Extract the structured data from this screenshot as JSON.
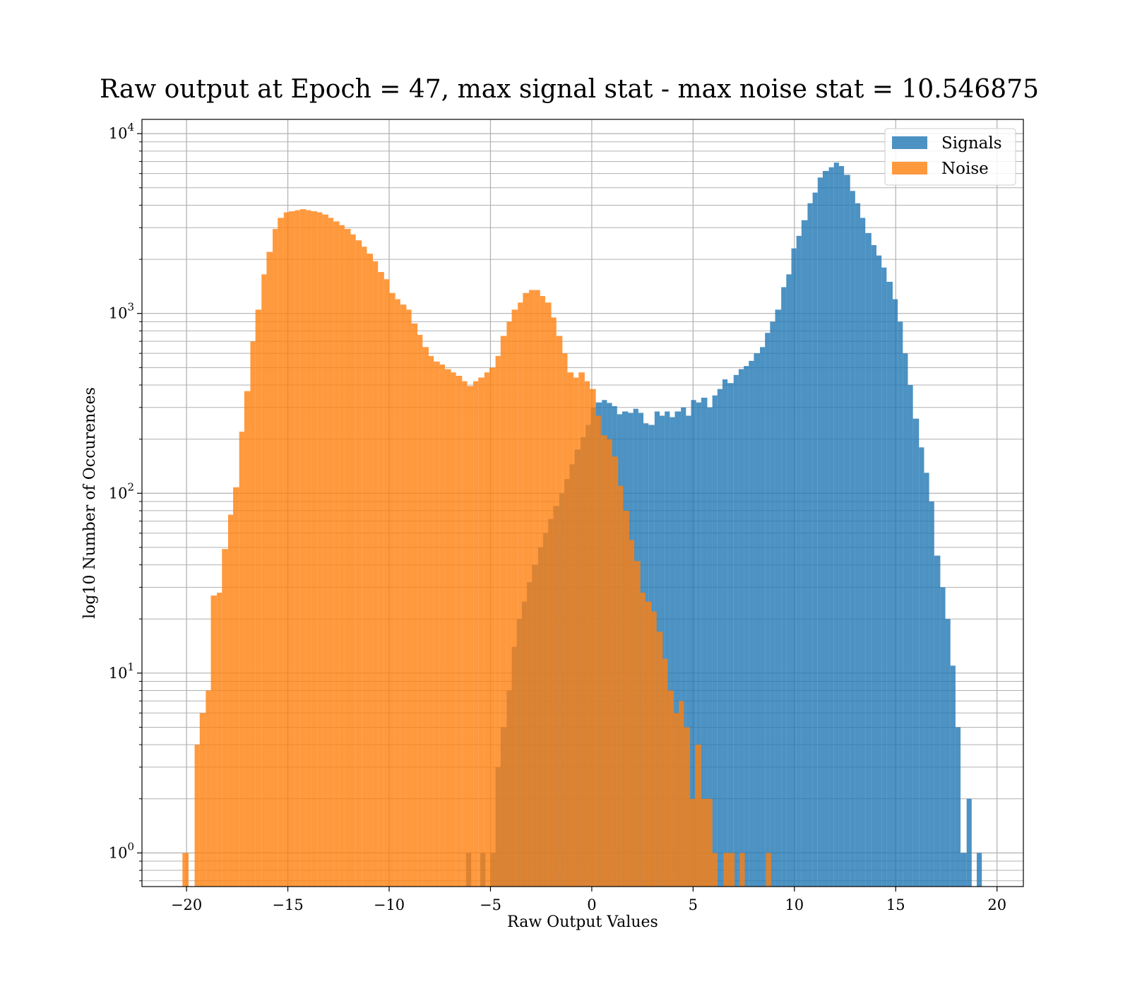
{
  "chart_data": {
    "type": "bar",
    "title": "Raw output at Epoch = 47, max signal stat - max noise stat = 10.546875",
    "xlabel": "Raw Output Values",
    "ylabel": "log10 Number of Occurences",
    "xlim": [
      -22.2,
      21.3
    ],
    "ylim": [
      0.65,
      12000
    ],
    "yscale": "log",
    "xticks": [
      -20,
      -15,
      -10,
      -5,
      0,
      5,
      10,
      15,
      20
    ],
    "xtick_labels": [
      "−20",
      "−15",
      "−10",
      "−5",
      "0",
      "5",
      "10",
      "15",
      "20"
    ],
    "yticks": [
      1,
      10,
      100,
      1000,
      10000
    ],
    "ytick_labels": [
      {
        "base": "10",
        "exp": "0"
      },
      {
        "base": "10",
        "exp": "1"
      },
      {
        "base": "10",
        "exp": "2"
      },
      {
        "base": "10",
        "exp": "3"
      },
      {
        "base": "10",
        "exp": "4"
      }
    ],
    "grid": true,
    "legend_position": "top-right",
    "series": [
      {
        "name": "Signals",
        "color": "#1f77b4",
        "opacity": 0.8,
        "bins": [
          [
            -6.2,
            -5.95,
            1
          ],
          [
            -5.5,
            -5.25,
            1
          ],
          [
            -5.0,
            -4.75,
            1
          ],
          [
            -4.75,
            -4.5,
            3
          ],
          [
            -4.5,
            -4.2,
            5
          ],
          [
            -4.2,
            -3.95,
            8
          ],
          [
            -3.95,
            -3.7,
            14
          ],
          [
            -3.7,
            -3.45,
            20
          ],
          [
            -3.45,
            -3.2,
            25
          ],
          [
            -3.2,
            -2.95,
            32
          ],
          [
            -2.95,
            -2.65,
            40
          ],
          [
            -2.65,
            -2.4,
            50
          ],
          [
            -2.4,
            -2.15,
            60
          ],
          [
            -2.15,
            -1.9,
            72
          ],
          [
            -1.9,
            -1.6,
            85
          ],
          [
            -1.6,
            -1.35,
            100
          ],
          [
            -1.35,
            -1.1,
            120
          ],
          [
            -1.1,
            -0.85,
            145
          ],
          [
            -0.85,
            -0.55,
            175
          ],
          [
            -0.55,
            -0.3,
            205
          ],
          [
            -0.3,
            -0.05,
            240
          ],
          [
            -0.05,
            0.2,
            300
          ],
          [
            0.2,
            0.5,
            320
          ],
          [
            0.5,
            0.75,
            330
          ],
          [
            0.75,
            1.0,
            318
          ],
          [
            1.0,
            1.25,
            305
          ],
          [
            1.25,
            1.5,
            275
          ],
          [
            1.5,
            1.8,
            285
          ],
          [
            1.8,
            2.05,
            280
          ],
          [
            2.05,
            2.3,
            295
          ],
          [
            2.3,
            2.55,
            280
          ],
          [
            2.55,
            2.8,
            245
          ],
          [
            2.8,
            3.1,
            240
          ],
          [
            3.1,
            3.35,
            285
          ],
          [
            3.35,
            3.6,
            270
          ],
          [
            3.6,
            3.85,
            285
          ],
          [
            3.85,
            4.1,
            265
          ],
          [
            4.1,
            4.4,
            285
          ],
          [
            4.4,
            4.65,
            300
          ],
          [
            4.65,
            4.9,
            270
          ],
          [
            4.9,
            5.15,
            330
          ],
          [
            5.15,
            5.4,
            320
          ],
          [
            5.4,
            5.7,
            340
          ],
          [
            5.7,
            5.95,
            300
          ],
          [
            5.95,
            6.2,
            350
          ],
          [
            6.2,
            6.45,
            380
          ],
          [
            6.45,
            6.7,
            430
          ],
          [
            6.7,
            7.0,
            410
          ],
          [
            7.0,
            7.25,
            455
          ],
          [
            7.25,
            7.5,
            490
          ],
          [
            7.5,
            7.75,
            510
          ],
          [
            7.75,
            8.0,
            545
          ],
          [
            8.0,
            8.3,
            600
          ],
          [
            8.3,
            8.55,
            650
          ],
          [
            8.55,
            8.8,
            780
          ],
          [
            8.8,
            9.05,
            900
          ],
          [
            9.05,
            9.35,
            1050
          ],
          [
            9.35,
            9.6,
            1400
          ],
          [
            9.6,
            9.85,
            1650
          ],
          [
            9.85,
            10.1,
            2300
          ],
          [
            10.1,
            10.35,
            2700
          ],
          [
            10.35,
            10.65,
            3300
          ],
          [
            10.65,
            10.9,
            4100
          ],
          [
            10.9,
            11.15,
            4700
          ],
          [
            11.15,
            11.4,
            5700
          ],
          [
            11.4,
            11.7,
            6200
          ],
          [
            11.7,
            11.95,
            6500
          ],
          [
            11.95,
            12.2,
            6900
          ],
          [
            12.2,
            12.45,
            6600
          ],
          [
            12.45,
            12.75,
            5900
          ],
          [
            12.75,
            13.0,
            4800
          ],
          [
            13.0,
            13.25,
            4100
          ],
          [
            13.25,
            13.5,
            3400
          ],
          [
            13.5,
            13.8,
            2800
          ],
          [
            13.8,
            14.05,
            2400
          ],
          [
            14.05,
            14.3,
            2100
          ],
          [
            14.3,
            14.55,
            1800
          ],
          [
            14.55,
            14.85,
            1500
          ],
          [
            14.85,
            15.1,
            1200
          ],
          [
            15.1,
            15.35,
            900
          ],
          [
            15.35,
            15.6,
            600
          ],
          [
            15.6,
            15.85,
            400
          ],
          [
            15.85,
            16.15,
            260
          ],
          [
            16.15,
            16.4,
            180
          ],
          [
            16.4,
            16.65,
            130
          ],
          [
            16.65,
            16.9,
            90
          ],
          [
            16.9,
            17.2,
            45
          ],
          [
            17.2,
            17.45,
            30
          ],
          [
            17.45,
            17.7,
            20
          ],
          [
            17.7,
            17.95,
            11
          ],
          [
            17.95,
            18.2,
            5
          ],
          [
            18.2,
            18.5,
            1
          ],
          [
            18.5,
            18.75,
            2
          ],
          [
            19.0,
            19.25,
            1
          ]
        ]
      },
      {
        "name": "Noise",
        "color": "#ff7f0e",
        "opacity": 0.8,
        "bins": [
          [
            -20.2,
            -19.9,
            1
          ],
          [
            -19.6,
            -19.35,
            4
          ],
          [
            -19.35,
            -19.05,
            6
          ],
          [
            -19.05,
            -18.8,
            8
          ],
          [
            -18.8,
            -18.5,
            27
          ],
          [
            -18.5,
            -18.25,
            28
          ],
          [
            -18.25,
            -17.95,
            49
          ],
          [
            -17.95,
            -17.7,
            76
          ],
          [
            -17.7,
            -17.4,
            108
          ],
          [
            -17.4,
            -17.15,
            220
          ],
          [
            -17.15,
            -16.85,
            370
          ],
          [
            -16.85,
            -16.6,
            700
          ],
          [
            -16.6,
            -16.3,
            1050
          ],
          [
            -16.3,
            -16.05,
            1650
          ],
          [
            -16.05,
            -15.75,
            2200
          ],
          [
            -15.75,
            -15.5,
            2950
          ],
          [
            -15.5,
            -15.2,
            3400
          ],
          [
            -15.2,
            -14.95,
            3650
          ],
          [
            -14.95,
            -14.65,
            3700
          ],
          [
            -14.65,
            -14.4,
            3750
          ],
          [
            -14.4,
            -14.1,
            3800
          ],
          [
            -14.1,
            -13.85,
            3750
          ],
          [
            -13.85,
            -13.55,
            3700
          ],
          [
            -13.55,
            -13.3,
            3650
          ],
          [
            -13.3,
            -13.0,
            3550
          ],
          [
            -13.0,
            -12.75,
            3400
          ],
          [
            -12.75,
            -12.45,
            3250
          ],
          [
            -12.45,
            -12.2,
            3100
          ],
          [
            -12.2,
            -11.9,
            2950
          ],
          [
            -11.9,
            -11.65,
            2750
          ],
          [
            -11.65,
            -11.35,
            2550
          ],
          [
            -11.35,
            -11.1,
            2350
          ],
          [
            -11.1,
            -10.8,
            2150
          ],
          [
            -10.8,
            -10.55,
            1950
          ],
          [
            -10.55,
            -10.25,
            1700
          ],
          [
            -10.25,
            -10.0,
            1550
          ],
          [
            -10.0,
            -9.7,
            1300
          ],
          [
            -9.7,
            -9.45,
            1200
          ],
          [
            -9.45,
            -9.15,
            1120
          ],
          [
            -9.15,
            -8.9,
            1050
          ],
          [
            -8.9,
            -8.6,
            880
          ],
          [
            -8.6,
            -8.35,
            760
          ],
          [
            -8.35,
            -8.05,
            650
          ],
          [
            -8.05,
            -7.8,
            580
          ],
          [
            -7.8,
            -7.5,
            540
          ],
          [
            -7.5,
            -7.25,
            520
          ],
          [
            -7.25,
            -6.95,
            490
          ],
          [
            -6.95,
            -6.7,
            470
          ],
          [
            -6.7,
            -6.4,
            450
          ],
          [
            -6.4,
            -6.15,
            420
          ],
          [
            -6.15,
            -5.85,
            395
          ],
          [
            -5.85,
            -5.6,
            420
          ],
          [
            -5.6,
            -5.3,
            440
          ],
          [
            -5.3,
            -5.05,
            470
          ],
          [
            -5.05,
            -4.75,
            500
          ],
          [
            -4.75,
            -4.5,
            580
          ],
          [
            -4.5,
            -4.2,
            750
          ],
          [
            -4.2,
            -3.95,
            900
          ],
          [
            -3.95,
            -3.65,
            1050
          ],
          [
            -3.65,
            -3.4,
            1150
          ],
          [
            -3.4,
            -3.1,
            1300
          ],
          [
            -3.1,
            -2.85,
            1350
          ],
          [
            -2.85,
            -2.55,
            1350
          ],
          [
            -2.55,
            -2.3,
            1250
          ],
          [
            -2.3,
            -2.0,
            1150
          ],
          [
            -2.0,
            -1.75,
            950
          ],
          [
            -1.75,
            -1.45,
            750
          ],
          [
            -1.45,
            -1.2,
            600
          ],
          [
            -1.2,
            -0.9,
            470
          ],
          [
            -0.9,
            -0.65,
            440
          ],
          [
            -0.65,
            -0.35,
            470
          ],
          [
            -0.35,
            -0.1,
            420
          ],
          [
            -0.1,
            0.2,
            380
          ],
          [
            0.2,
            0.45,
            270
          ],
          [
            0.45,
            0.75,
            210
          ],
          [
            0.75,
            1.0,
            200
          ],
          [
            1.0,
            1.3,
            160
          ],
          [
            1.3,
            1.55,
            110
          ],
          [
            1.55,
            1.85,
            80
          ],
          [
            1.85,
            2.1,
            55
          ],
          [
            2.1,
            2.4,
            42
          ],
          [
            2.4,
            2.65,
            28
          ],
          [
            2.65,
            2.95,
            25
          ],
          [
            2.95,
            3.2,
            22
          ],
          [
            3.2,
            3.5,
            17
          ],
          [
            3.5,
            3.75,
            12
          ],
          [
            3.75,
            4.05,
            8
          ],
          [
            4.05,
            4.3,
            6
          ],
          [
            4.3,
            4.55,
            7
          ],
          [
            4.55,
            4.85,
            5
          ],
          [
            4.85,
            5.1,
            2
          ],
          [
            5.1,
            5.4,
            4
          ],
          [
            5.4,
            5.65,
            2
          ],
          [
            5.65,
            5.95,
            2
          ],
          [
            5.95,
            6.2,
            1
          ],
          [
            6.5,
            6.75,
            1
          ],
          [
            6.75,
            7.05,
            1
          ],
          [
            7.3,
            7.55,
            1
          ],
          [
            8.6,
            8.85,
            1
          ]
        ]
      }
    ]
  }
}
